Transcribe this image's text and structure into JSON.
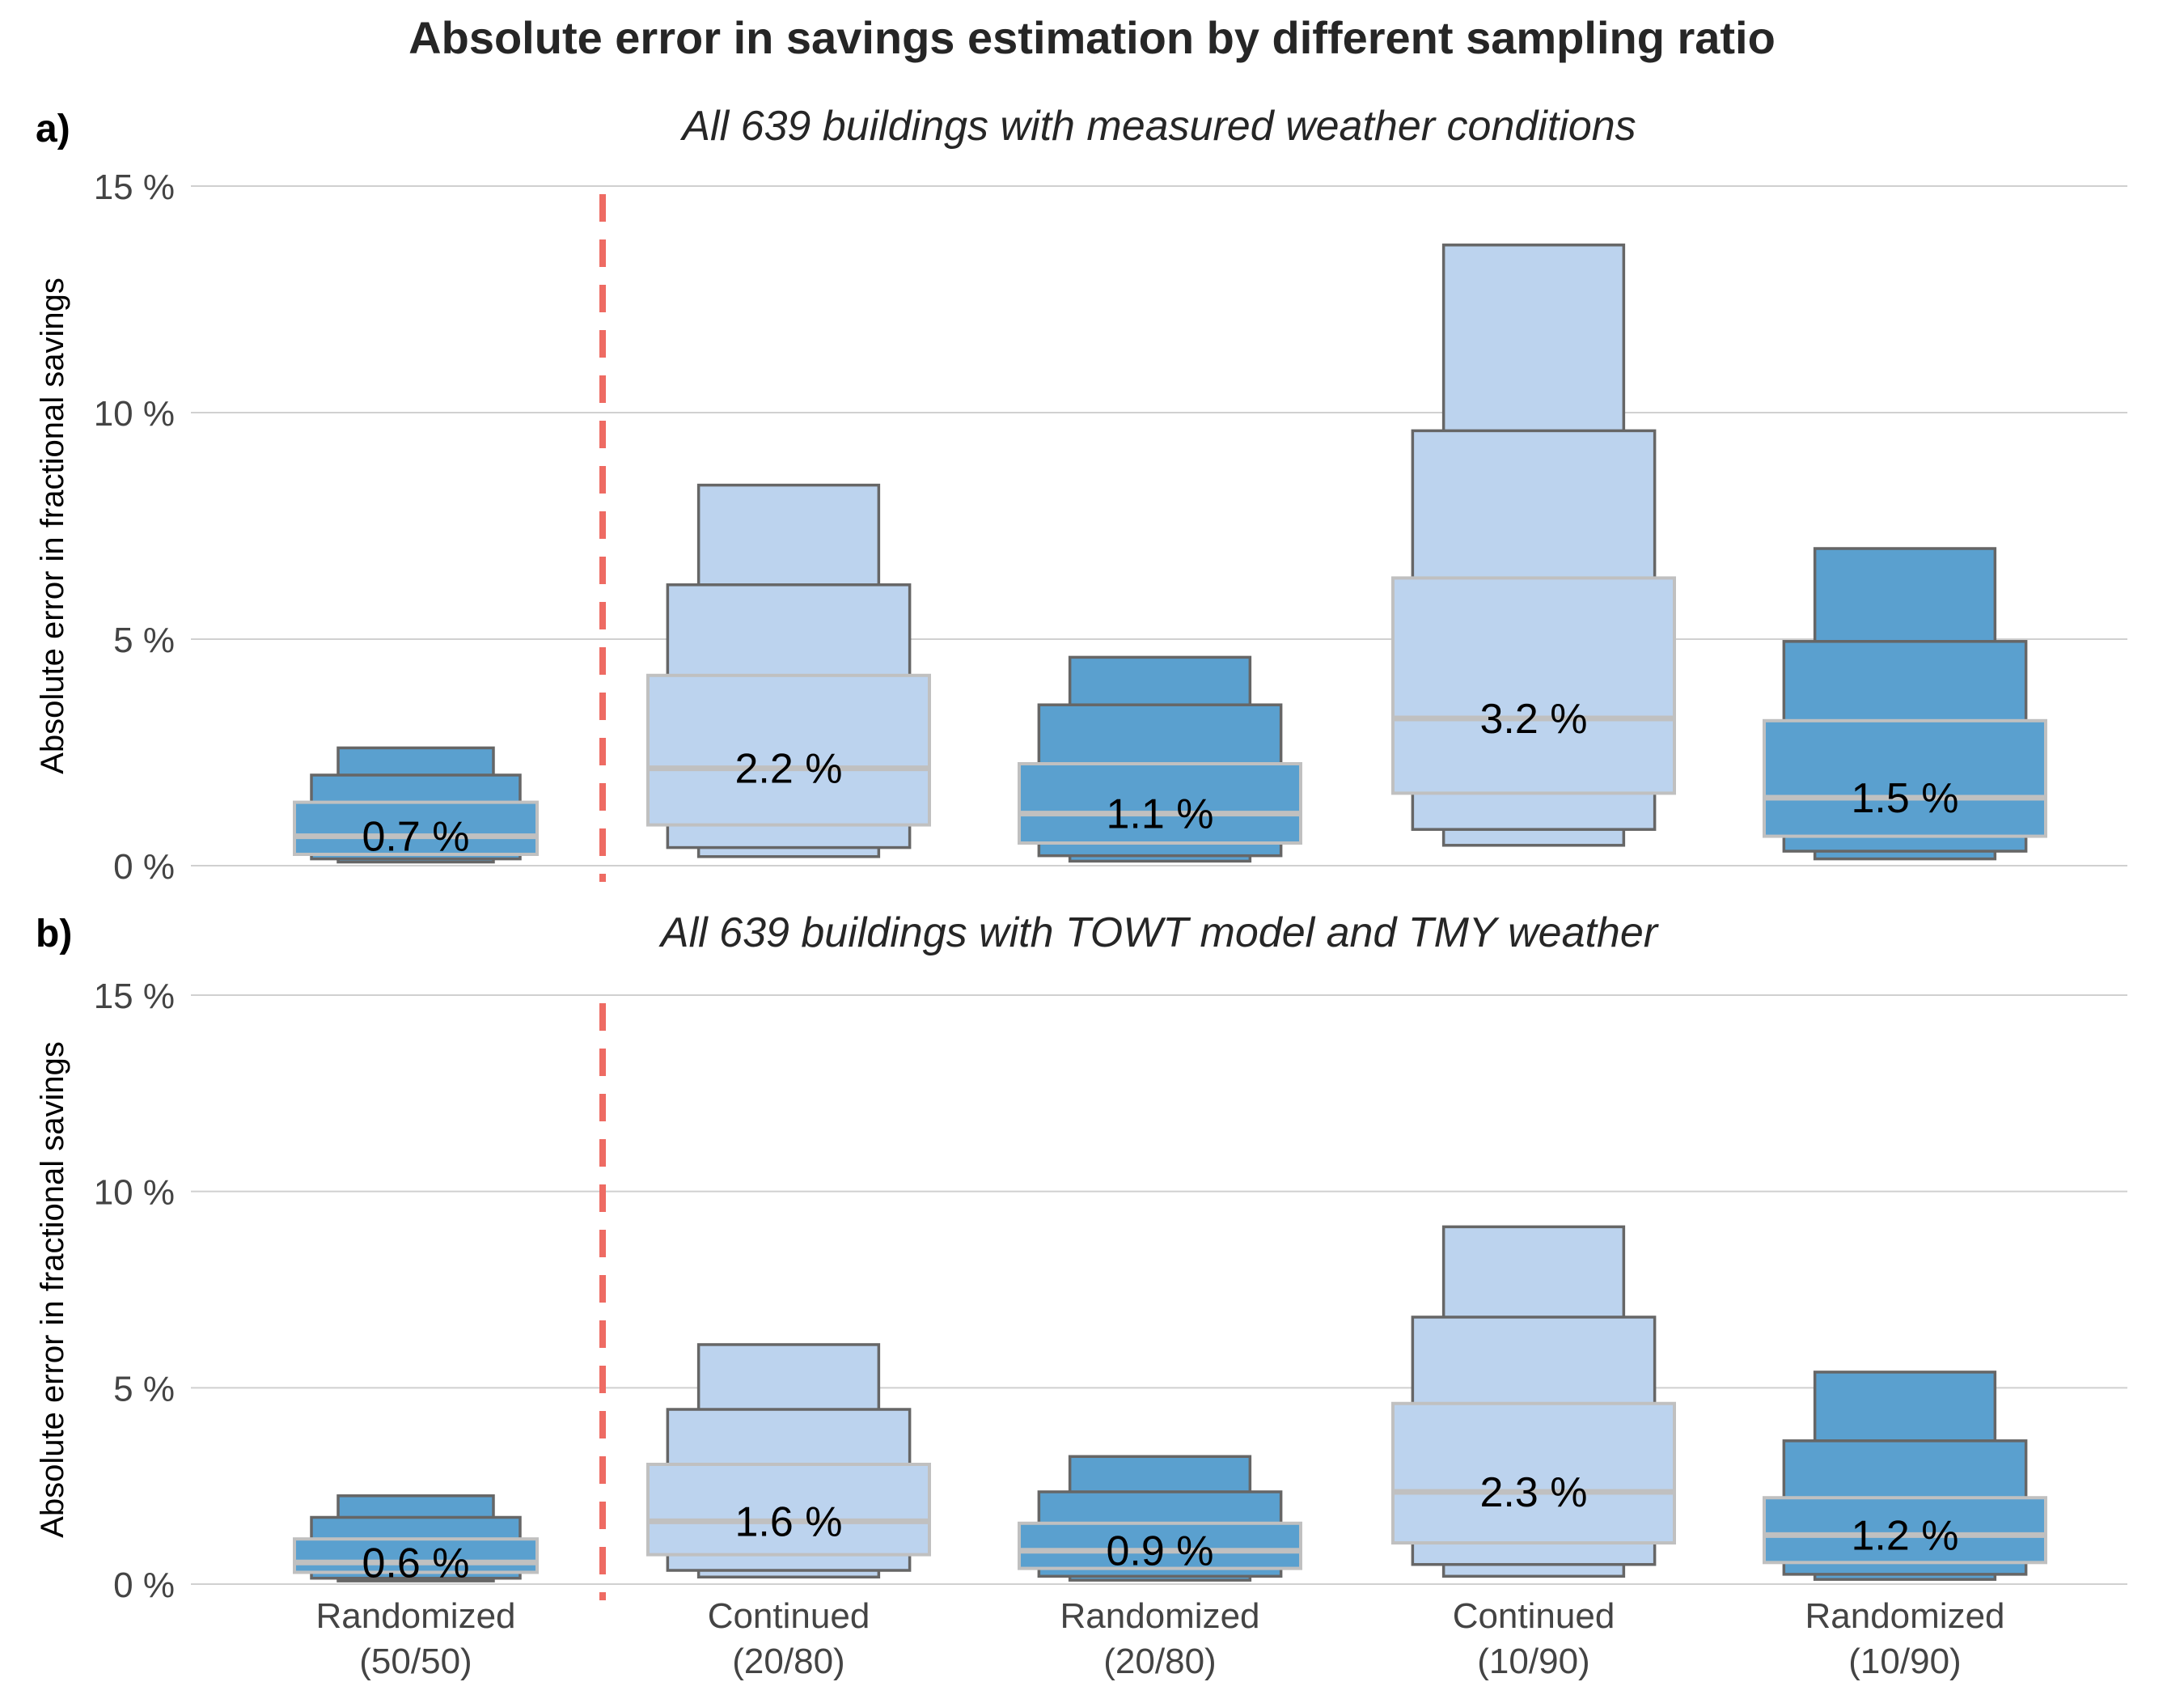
{
  "chart_data": {
    "type": "boxen",
    "title": "Absolute error in savings estimation by different sampling ratio",
    "categories": [
      {
        "line1": "Randomized",
        "line2": "(50/50)",
        "group": "Randomized"
      },
      {
        "line1": "Continued",
        "line2": "(20/80)",
        "group": "Continued"
      },
      {
        "line1": "Randomized",
        "line2": "(20/80)",
        "group": "Randomized"
      },
      {
        "line1": "Continued",
        "line2": "(10/90)",
        "group": "Continued"
      },
      {
        "line1": "Randomized",
        "line2": "(10/90)",
        "group": "Randomized"
      }
    ],
    "colors": {
      "Randomized": "#5aa0cf",
      "Continued": "#bcd3ee",
      "edge": "#666666",
      "inner_edge": "#c0c0c0",
      "median": "#c0c0c0",
      "divider": "#ee6b63",
      "grid": "#d0d0d0"
    },
    "ylabel": "Absolute error in fractional savings",
    "yticks": [
      {
        "value": 0,
        "label": "0 %"
      },
      {
        "value": 5,
        "label": "5 %"
      },
      {
        "value": 10,
        "label": "10 %"
      },
      {
        "value": 15,
        "label": "15 %"
      }
    ],
    "ylim": [
      0,
      15
    ],
    "divider_between": [
      0,
      1
    ],
    "panels": [
      {
        "label": "a)",
        "subtitle": "All 639 buildings with measured weather conditions",
        "boxes": [
          {
            "median": 0.65,
            "median_label": "0.7 %",
            "levels": [
              [
                0.25,
                1.4
              ],
              [
                0.15,
                2.0
              ],
              [
                0.08,
                2.6
              ]
            ]
          },
          {
            "median": 2.15,
            "median_label": "2.2 %",
            "levels": [
              [
                0.9,
                4.2
              ],
              [
                0.4,
                6.2
              ],
              [
                0.2,
                8.4
              ]
            ]
          },
          {
            "median": 1.15,
            "median_label": "1.1 %",
            "levels": [
              [
                0.5,
                2.25
              ],
              [
                0.22,
                3.55
              ],
              [
                0.1,
                4.6
              ]
            ]
          },
          {
            "median": 3.25,
            "median_label": "3.2 %",
            "levels": [
              [
                1.6,
                6.35
              ],
              [
                0.8,
                9.6
              ],
              [
                0.45,
                13.7
              ]
            ]
          },
          {
            "median": 1.5,
            "median_label": "1.5 %",
            "levels": [
              [
                0.65,
                3.2
              ],
              [
                0.32,
                4.95
              ],
              [
                0.15,
                7.0
              ]
            ]
          }
        ]
      },
      {
        "label": "b)",
        "subtitle": "All 639 buildings with TOWT model and TMY weather",
        "boxes": [
          {
            "median": 0.55,
            "median_label": "0.6 %",
            "levels": [
              [
                0.3,
                1.15
              ],
              [
                0.15,
                1.7
              ],
              [
                0.08,
                2.25
              ]
            ]
          },
          {
            "median": 1.6,
            "median_label": "1.6 %",
            "levels": [
              [
                0.75,
                3.05
              ],
              [
                0.35,
                4.45
              ],
              [
                0.18,
                6.1
              ]
            ]
          },
          {
            "median": 0.85,
            "median_label": "0.9 %",
            "levels": [
              [
                0.4,
                1.55
              ],
              [
                0.2,
                2.35
              ],
              [
                0.1,
                3.25
              ]
            ]
          },
          {
            "median": 2.35,
            "median_label": "2.3 %",
            "levels": [
              [
                1.05,
                4.6
              ],
              [
                0.5,
                6.8
              ],
              [
                0.2,
                9.1
              ]
            ]
          },
          {
            "median": 1.25,
            "median_label": "1.2 %",
            "levels": [
              [
                0.55,
                2.2
              ],
              [
                0.25,
                3.65
              ],
              [
                0.12,
                5.4
              ]
            ]
          }
        ]
      }
    ]
  }
}
